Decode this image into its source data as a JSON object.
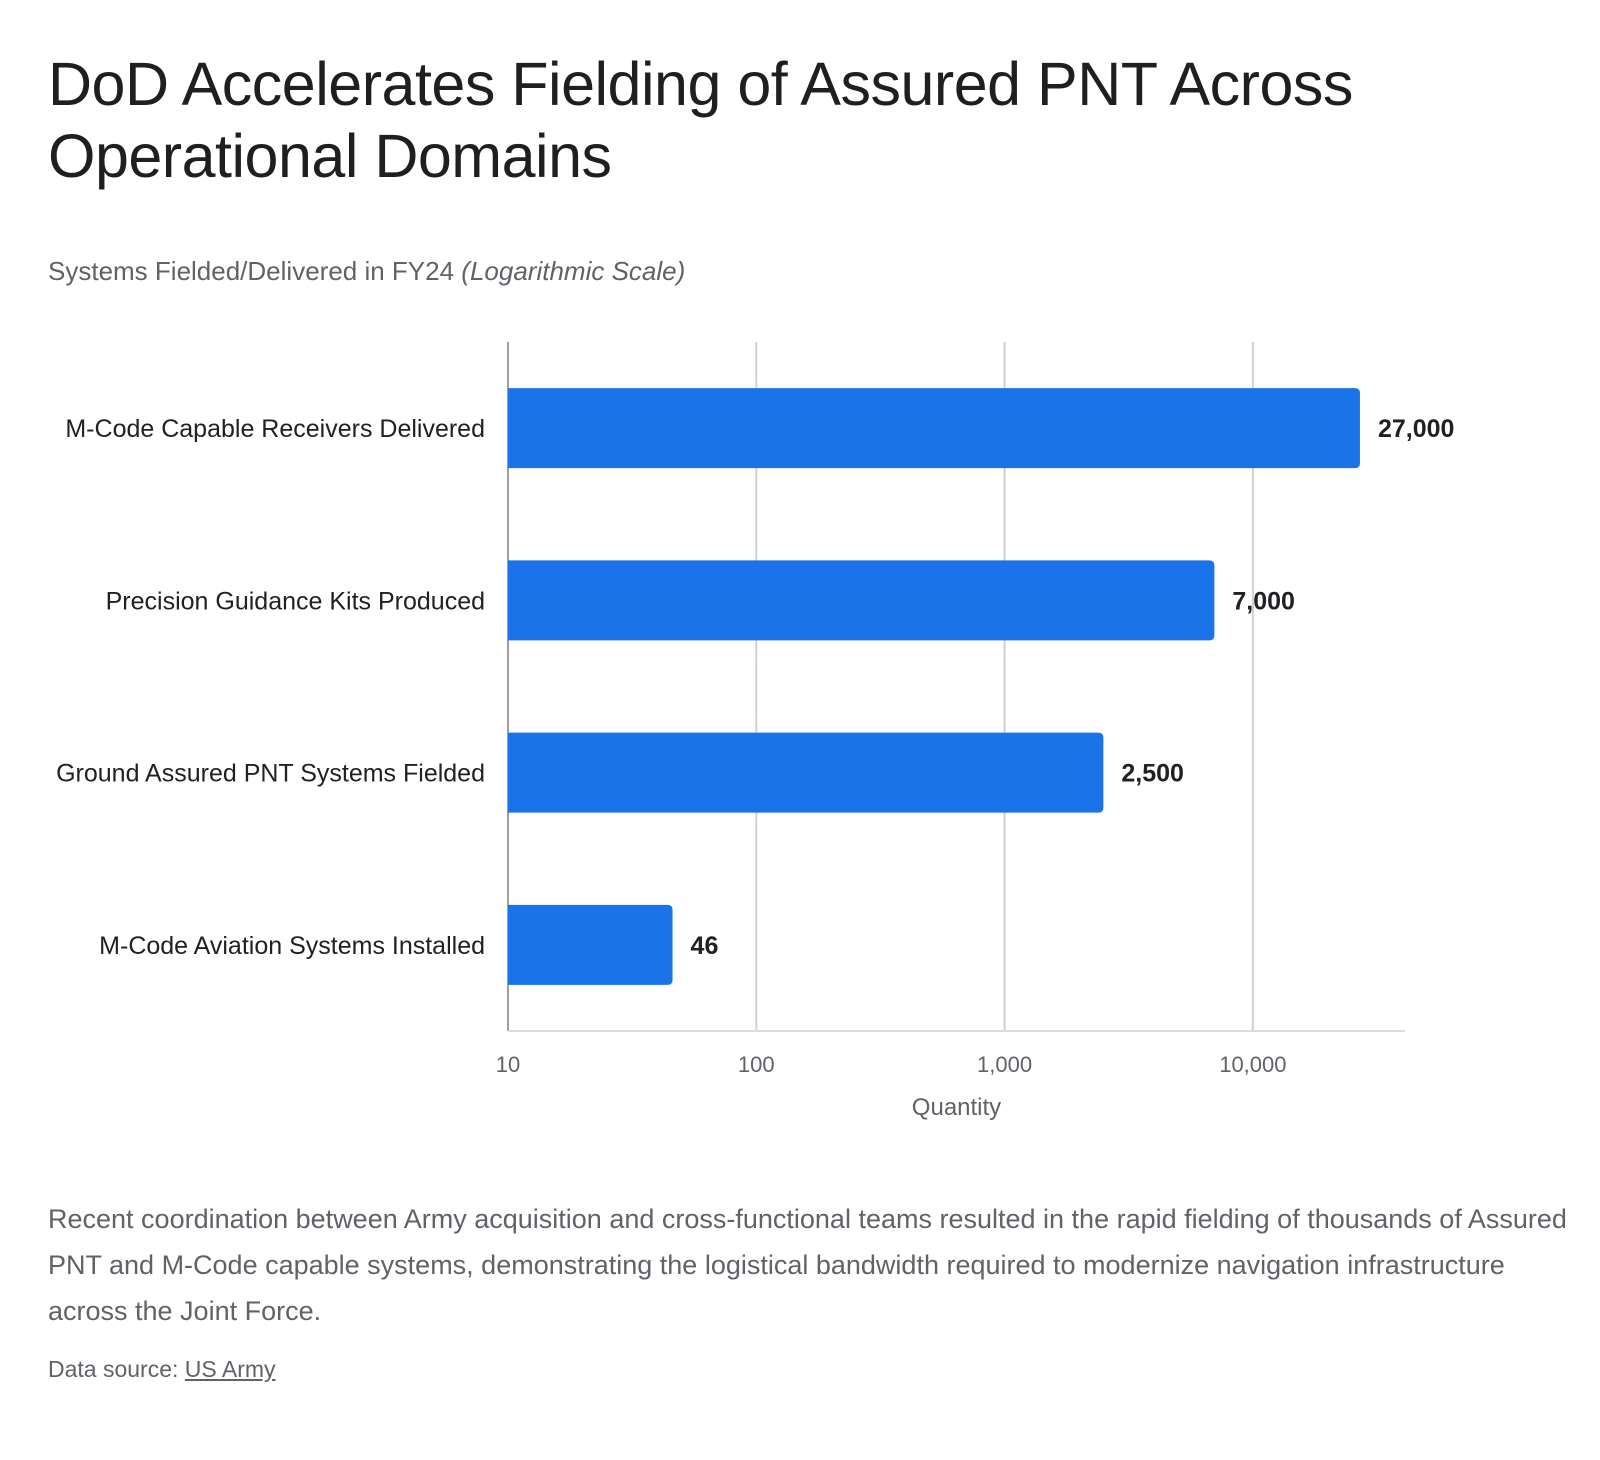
{
  "header": {
    "title": "DoD Accelerates Fielding of Assured PNT Across Operational Domains",
    "subtitle": "Systems Fielded/Delivered in FY24",
    "subtitle_note": "(Logarithmic Scale)"
  },
  "chart_data": {
    "type": "bar",
    "orientation": "horizontal",
    "scale": "log",
    "title": "DoD Accelerates Fielding of Assured PNT Across Operational Domains",
    "subtitle": "Systems Fielded/Delivered in FY24 (Logarithmic Scale)",
    "categories": [
      "M-Code Capable Receivers Delivered",
      "Precision Guidance Kits Produced",
      "Ground Assured PNT Systems Fielded",
      "M-Code Aviation Systems Installed"
    ],
    "values": [
      27000,
      7000,
      2500,
      46
    ],
    "value_labels": [
      "27,000",
      "7,000",
      "2,500",
      "46"
    ],
    "xlabel": "Quantity",
    "ylabel": "",
    "xlim": [
      10,
      41000
    ],
    "ticks": [
      10,
      100,
      1000,
      10000
    ],
    "tick_labels": [
      "10",
      "100",
      "1,000",
      "10,000"
    ],
    "grid": true,
    "bar_color": "#1a73e8"
  },
  "caption": "Recent coordination between Army acquisition and cross-functional teams resulted in the rapid fielding of thousands of Assured PNT and M-Code capable systems, demonstrating the logistical bandwidth required to modernize navigation infrastructure across the Joint Force.",
  "source": {
    "label": "Data source:",
    "link_text": "US Army"
  }
}
